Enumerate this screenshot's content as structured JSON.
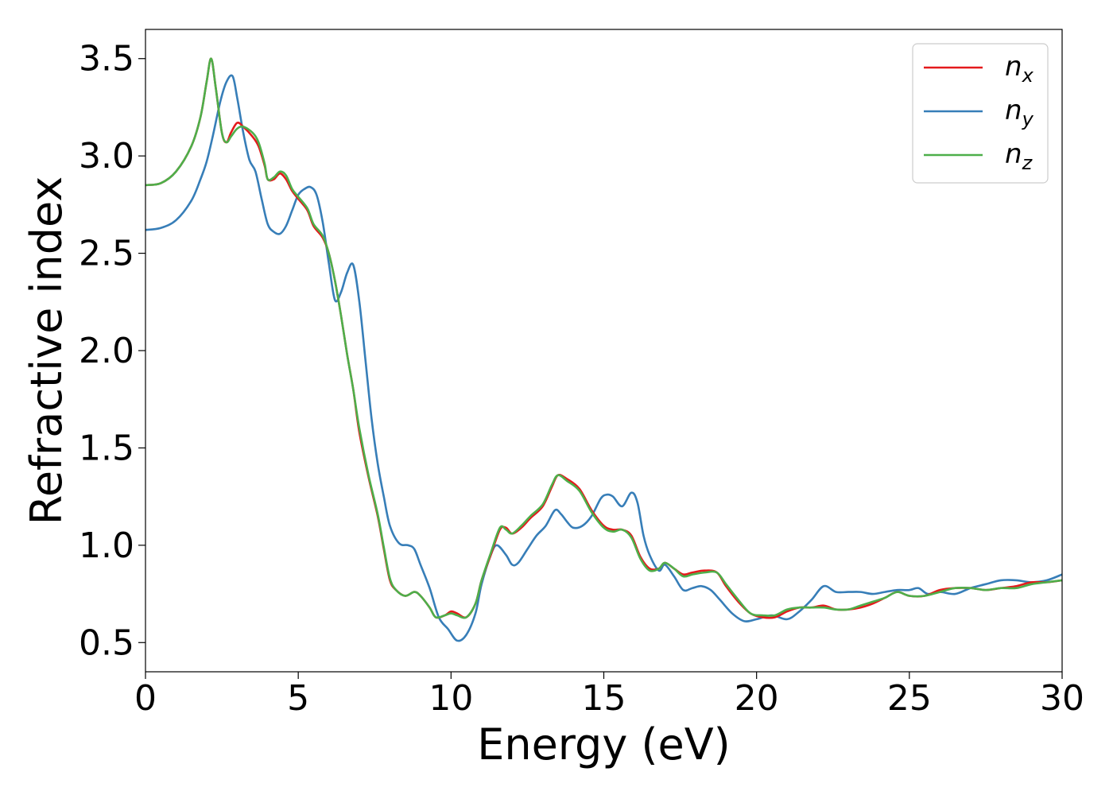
{
  "chart_data": {
    "type": "line",
    "xlabel": "Energy (eV)",
    "ylabel": "Refractive index",
    "xlim": [
      0,
      30
    ],
    "ylim": [
      0.35,
      3.65
    ],
    "xticks": [
      0,
      5,
      10,
      15,
      20,
      25,
      30
    ],
    "xtick_labels": [
      "0",
      "5",
      "10",
      "15",
      "20",
      "25",
      "30"
    ],
    "yticks": [
      0.5,
      1.0,
      1.5,
      2.0,
      2.5,
      3.0,
      3.5
    ],
    "ytick_labels": [
      "0.5",
      "1.0",
      "1.5",
      "2.0",
      "2.5",
      "3.0",
      "3.5"
    ],
    "grid": false,
    "legend_position": "top-right",
    "series": [
      {
        "name": "n",
        "subscript": "x",
        "color": "#e41a1c",
        "points": [
          [
            0,
            2.85
          ],
          [
            0.5,
            2.86
          ],
          [
            1.0,
            2.92
          ],
          [
            1.5,
            3.05
          ],
          [
            1.8,
            3.2
          ],
          [
            2.0,
            3.38
          ],
          [
            2.15,
            3.5
          ],
          [
            2.3,
            3.35
          ],
          [
            2.5,
            3.12
          ],
          [
            2.65,
            3.07
          ],
          [
            2.8,
            3.12
          ],
          [
            3.0,
            3.17
          ],
          [
            3.2,
            3.15
          ],
          [
            3.5,
            3.1
          ],
          [
            3.7,
            3.05
          ],
          [
            3.9,
            2.95
          ],
          [
            4.0,
            2.88
          ],
          [
            4.2,
            2.88
          ],
          [
            4.4,
            2.91
          ],
          [
            4.6,
            2.88
          ],
          [
            4.8,
            2.82
          ],
          [
            5.0,
            2.78
          ],
          [
            5.3,
            2.72
          ],
          [
            5.5,
            2.64
          ],
          [
            5.8,
            2.58
          ],
          [
            6.0,
            2.5
          ],
          [
            6.2,
            2.36
          ],
          [
            6.4,
            2.18
          ],
          [
            6.6,
            1.98
          ],
          [
            6.8,
            1.8
          ],
          [
            7.0,
            1.58
          ],
          [
            7.3,
            1.35
          ],
          [
            7.6,
            1.15
          ],
          [
            7.8,
            0.98
          ],
          [
            8.0,
            0.82
          ],
          [
            8.2,
            0.77
          ],
          [
            8.5,
            0.74
          ],
          [
            8.8,
            0.76
          ],
          [
            9.0,
            0.74
          ],
          [
            9.3,
            0.68
          ],
          [
            9.5,
            0.63
          ],
          [
            9.8,
            0.64
          ],
          [
            10.0,
            0.66
          ],
          [
            10.2,
            0.65
          ],
          [
            10.5,
            0.63
          ],
          [
            10.8,
            0.7
          ],
          [
            11.0,
            0.82
          ],
          [
            11.3,
            0.95
          ],
          [
            11.6,
            1.08
          ],
          [
            11.8,
            1.09
          ],
          [
            12.0,
            1.06
          ],
          [
            12.3,
            1.09
          ],
          [
            12.6,
            1.14
          ],
          [
            13.0,
            1.2
          ],
          [
            13.3,
            1.3
          ],
          [
            13.5,
            1.36
          ],
          [
            13.8,
            1.34
          ],
          [
            14.2,
            1.29
          ],
          [
            14.6,
            1.18
          ],
          [
            15.0,
            1.1
          ],
          [
            15.3,
            1.08
          ],
          [
            15.6,
            1.08
          ],
          [
            15.9,
            1.05
          ],
          [
            16.2,
            0.94
          ],
          [
            16.5,
            0.88
          ],
          [
            16.8,
            0.88
          ],
          [
            17.0,
            0.91
          ],
          [
            17.3,
            0.88
          ],
          [
            17.6,
            0.85
          ],
          [
            17.9,
            0.86
          ],
          [
            18.3,
            0.87
          ],
          [
            18.7,
            0.86
          ],
          [
            19.0,
            0.79
          ],
          [
            19.4,
            0.71
          ],
          [
            19.8,
            0.65
          ],
          [
            20.2,
            0.63
          ],
          [
            20.6,
            0.63
          ],
          [
            21.0,
            0.66
          ],
          [
            21.4,
            0.68
          ],
          [
            21.8,
            0.68
          ],
          [
            22.2,
            0.69
          ],
          [
            22.6,
            0.67
          ],
          [
            23.0,
            0.67
          ],
          [
            23.4,
            0.68
          ],
          [
            23.8,
            0.7
          ],
          [
            24.2,
            0.73
          ],
          [
            24.6,
            0.76
          ],
          [
            25.0,
            0.74
          ],
          [
            25.5,
            0.74
          ],
          [
            26.0,
            0.77
          ],
          [
            26.5,
            0.78
          ],
          [
            27.0,
            0.78
          ],
          [
            27.5,
            0.77
          ],
          [
            28.0,
            0.78
          ],
          [
            28.5,
            0.79
          ],
          [
            29.0,
            0.81
          ],
          [
            29.5,
            0.81
          ],
          [
            30.0,
            0.82
          ]
        ]
      },
      {
        "name": "n",
        "subscript": "y",
        "color": "#377eb8",
        "points": [
          [
            0,
            2.62
          ],
          [
            0.5,
            2.63
          ],
          [
            1.0,
            2.67
          ],
          [
            1.5,
            2.77
          ],
          [
            1.8,
            2.88
          ],
          [
            2.0,
            2.97
          ],
          [
            2.2,
            3.1
          ],
          [
            2.45,
            3.28
          ],
          [
            2.65,
            3.38
          ],
          [
            2.85,
            3.41
          ],
          [
            3.0,
            3.3
          ],
          [
            3.2,
            3.12
          ],
          [
            3.4,
            2.98
          ],
          [
            3.6,
            2.92
          ],
          [
            3.8,
            2.78
          ],
          [
            4.0,
            2.65
          ],
          [
            4.2,
            2.61
          ],
          [
            4.4,
            2.6
          ],
          [
            4.6,
            2.64
          ],
          [
            4.8,
            2.72
          ],
          [
            5.0,
            2.8
          ],
          [
            5.2,
            2.83
          ],
          [
            5.4,
            2.84
          ],
          [
            5.6,
            2.8
          ],
          [
            5.8,
            2.66
          ],
          [
            6.0,
            2.45
          ],
          [
            6.2,
            2.26
          ],
          [
            6.4,
            2.3
          ],
          [
            6.6,
            2.4
          ],
          [
            6.8,
            2.44
          ],
          [
            7.0,
            2.25
          ],
          [
            7.2,
            1.95
          ],
          [
            7.4,
            1.65
          ],
          [
            7.6,
            1.42
          ],
          [
            7.8,
            1.25
          ],
          [
            8.0,
            1.1
          ],
          [
            8.3,
            1.01
          ],
          [
            8.6,
            1.0
          ],
          [
            8.8,
            0.98
          ],
          [
            9.0,
            0.9
          ],
          [
            9.3,
            0.78
          ],
          [
            9.6,
            0.63
          ],
          [
            9.9,
            0.57
          ],
          [
            10.2,
            0.51
          ],
          [
            10.5,
            0.54
          ],
          [
            10.8,
            0.65
          ],
          [
            11.0,
            0.8
          ],
          [
            11.3,
            0.95
          ],
          [
            11.5,
            1.0
          ],
          [
            11.8,
            0.95
          ],
          [
            12.0,
            0.9
          ],
          [
            12.2,
            0.91
          ],
          [
            12.5,
            0.98
          ],
          [
            12.8,
            1.05
          ],
          [
            13.1,
            1.1
          ],
          [
            13.4,
            1.18
          ],
          [
            13.6,
            1.16
          ],
          [
            13.8,
            1.12
          ],
          [
            14.0,
            1.09
          ],
          [
            14.3,
            1.1
          ],
          [
            14.6,
            1.15
          ],
          [
            14.9,
            1.24
          ],
          [
            15.1,
            1.26
          ],
          [
            15.3,
            1.25
          ],
          [
            15.6,
            1.2
          ],
          [
            15.9,
            1.27
          ],
          [
            16.1,
            1.22
          ],
          [
            16.3,
            1.05
          ],
          [
            16.5,
            0.95
          ],
          [
            16.8,
            0.87
          ],
          [
            17.0,
            0.9
          ],
          [
            17.3,
            0.84
          ],
          [
            17.6,
            0.77
          ],
          [
            17.9,
            0.78
          ],
          [
            18.2,
            0.79
          ],
          [
            18.5,
            0.77
          ],
          [
            18.8,
            0.72
          ],
          [
            19.2,
            0.65
          ],
          [
            19.6,
            0.61
          ],
          [
            20.0,
            0.62
          ],
          [
            20.5,
            0.64
          ],
          [
            21.0,
            0.62
          ],
          [
            21.4,
            0.66
          ],
          [
            21.8,
            0.72
          ],
          [
            22.2,
            0.79
          ],
          [
            22.6,
            0.76
          ],
          [
            23.0,
            0.76
          ],
          [
            23.4,
            0.76
          ],
          [
            23.8,
            0.75
          ],
          [
            24.2,
            0.76
          ],
          [
            24.6,
            0.77
          ],
          [
            25.0,
            0.77
          ],
          [
            25.3,
            0.78
          ],
          [
            25.6,
            0.75
          ],
          [
            26.0,
            0.76
          ],
          [
            26.5,
            0.75
          ],
          [
            27.0,
            0.78
          ],
          [
            27.5,
            0.8
          ],
          [
            28.0,
            0.82
          ],
          [
            28.5,
            0.82
          ],
          [
            29.0,
            0.81
          ],
          [
            29.5,
            0.82
          ],
          [
            30.0,
            0.85
          ]
        ]
      },
      {
        "name": "n",
        "subscript": "z",
        "color": "#4daf4a",
        "points": [
          [
            0,
            2.85
          ],
          [
            0.5,
            2.86
          ],
          [
            1.0,
            2.92
          ],
          [
            1.5,
            3.05
          ],
          [
            1.8,
            3.2
          ],
          [
            2.0,
            3.38
          ],
          [
            2.15,
            3.5
          ],
          [
            2.3,
            3.35
          ],
          [
            2.5,
            3.12
          ],
          [
            2.65,
            3.07
          ],
          [
            2.8,
            3.1
          ],
          [
            3.0,
            3.14
          ],
          [
            3.2,
            3.15
          ],
          [
            3.5,
            3.12
          ],
          [
            3.7,
            3.07
          ],
          [
            3.9,
            2.96
          ],
          [
            4.0,
            2.88
          ],
          [
            4.2,
            2.89
          ],
          [
            4.4,
            2.92
          ],
          [
            4.6,
            2.9
          ],
          [
            4.8,
            2.83
          ],
          [
            5.0,
            2.79
          ],
          [
            5.3,
            2.73
          ],
          [
            5.5,
            2.65
          ],
          [
            5.8,
            2.59
          ],
          [
            6.0,
            2.5
          ],
          [
            6.2,
            2.36
          ],
          [
            6.4,
            2.18
          ],
          [
            6.6,
            1.98
          ],
          [
            6.8,
            1.8
          ],
          [
            7.0,
            1.6
          ],
          [
            7.3,
            1.36
          ],
          [
            7.6,
            1.16
          ],
          [
            7.8,
            0.99
          ],
          [
            8.0,
            0.83
          ],
          [
            8.2,
            0.77
          ],
          [
            8.5,
            0.74
          ],
          [
            8.8,
            0.76
          ],
          [
            9.0,
            0.74
          ],
          [
            9.3,
            0.68
          ],
          [
            9.5,
            0.63
          ],
          [
            9.8,
            0.64
          ],
          [
            10.0,
            0.65
          ],
          [
            10.2,
            0.64
          ],
          [
            10.5,
            0.63
          ],
          [
            10.8,
            0.7
          ],
          [
            11.0,
            0.82
          ],
          [
            11.3,
            0.96
          ],
          [
            11.6,
            1.09
          ],
          [
            11.8,
            1.08
          ],
          [
            12.0,
            1.06
          ],
          [
            12.3,
            1.1
          ],
          [
            12.6,
            1.15
          ],
          [
            13.0,
            1.21
          ],
          [
            13.3,
            1.31
          ],
          [
            13.5,
            1.36
          ],
          [
            13.8,
            1.33
          ],
          [
            14.2,
            1.28
          ],
          [
            14.6,
            1.17
          ],
          [
            15.0,
            1.09
          ],
          [
            15.3,
            1.07
          ],
          [
            15.6,
            1.08
          ],
          [
            15.9,
            1.04
          ],
          [
            16.2,
            0.93
          ],
          [
            16.5,
            0.87
          ],
          [
            16.8,
            0.88
          ],
          [
            17.0,
            0.91
          ],
          [
            17.3,
            0.88
          ],
          [
            17.6,
            0.84
          ],
          [
            17.9,
            0.85
          ],
          [
            18.3,
            0.86
          ],
          [
            18.7,
            0.86
          ],
          [
            19.0,
            0.8
          ],
          [
            19.4,
            0.72
          ],
          [
            19.8,
            0.65
          ],
          [
            20.2,
            0.64
          ],
          [
            20.6,
            0.64
          ],
          [
            21.0,
            0.67
          ],
          [
            21.4,
            0.68
          ],
          [
            21.8,
            0.68
          ],
          [
            22.2,
            0.68
          ],
          [
            22.6,
            0.67
          ],
          [
            23.0,
            0.67
          ],
          [
            23.4,
            0.69
          ],
          [
            23.8,
            0.71
          ],
          [
            24.2,
            0.73
          ],
          [
            24.6,
            0.76
          ],
          [
            25.0,
            0.74
          ],
          [
            25.5,
            0.74
          ],
          [
            26.0,
            0.76
          ],
          [
            26.5,
            0.78
          ],
          [
            27.0,
            0.78
          ],
          [
            27.5,
            0.77
          ],
          [
            28.0,
            0.78
          ],
          [
            28.5,
            0.78
          ],
          [
            29.0,
            0.8
          ],
          [
            29.5,
            0.81
          ],
          [
            30.0,
            0.82
          ]
        ]
      }
    ]
  }
}
